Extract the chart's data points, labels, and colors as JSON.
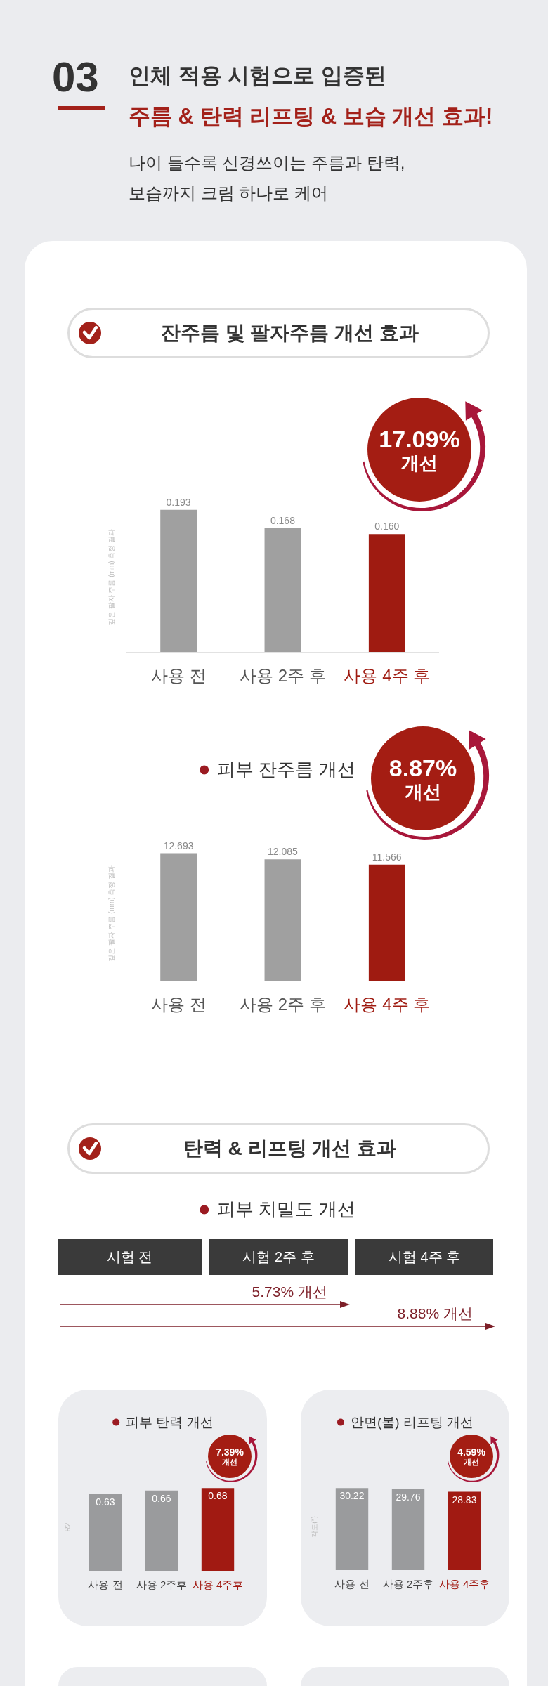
{
  "chart_data": [
    {
      "type": "other",
      "title": "인체 적용 시험으로 입증된",
      "subtitle": "주름 & 탄력 리프팅 & 보습 개선 효과!",
      "annotations": [
        "03",
        "나이 들수록 신경쓰이는 주름과 탄력,\n보습까지 크림 하나로 케어"
      ]
    },
    {
      "type": "bar",
      "title": "잔주름 및 팔자주름 개선 효과",
      "ylabel": "깊은 팔자 주름 (mm) 측정 결과",
      "categories": [
        "사용 전",
        "사용 2주 후",
        "사용 4주 후"
      ],
      "values": [
        0.193,
        0.168,
        0.16
      ],
      "value_labels": [
        "0.193",
        "0.168",
        "0.160"
      ],
      "colors": [
        "#a0a0a0",
        "#a0a0a0",
        "#9f1b11"
      ],
      "annotations": [
        "17.09%\n개선"
      ],
      "tick_labels": "x"
    },
    {
      "type": "bar",
      "title": "피부 잔주름 개선",
      "ylabel": "깊은 팔자 주름 (mm) 측정 결과",
      "categories": [
        "사용 전",
        "사용 2주 후",
        "사용 4주 후"
      ],
      "values": [
        12.693,
        12.085,
        11.566
      ],
      "data_labels": true,
      "colors": [
        "#a0a0a0",
        "#a0a0a0",
        "#9f1b11"
      ],
      "annotations": [
        "8.87%\n개선"
      ],
      "tick_labels": "x"
    },
    {
      "type": "other",
      "title": "탄력 & 리프팅 개선 효과",
      "subtitle": "피부 치밀도 개선",
      "categories": [
        "시험 전",
        "시험 2주 후",
        "시험 4주 후"
      ],
      "annotations": [
        "5.73% 개선",
        "8.88% 개선"
      ]
    },
    {
      "type": "bar",
      "title": "피부 탄력 개선",
      "ylabel": "R2",
      "categories": [
        "사용 전",
        "사용 2주후",
        "사용 4주후"
      ],
      "values": [
        0.63,
        0.66,
        0.68
      ],
      "data_labels": true,
      "colors": [
        "#9a9b9d",
        "#9a9b9d",
        "#a11a12"
      ],
      "annotations": [
        "7.39%\n개선"
      ],
      "tick_labels": "x"
    },
    {
      "type": "bar",
      "title": "안면(볼) 리프팅 개선",
      "ylabel": "각도(°)",
      "categories": [
        "사용 전",
        "사용 2주후",
        "사용 4주후"
      ],
      "values": [
        30.22,
        29.76,
        28.83
      ],
      "data_labels": true,
      "colors": [
        "#9a9b9d",
        "#9a9b9d",
        "#a11a12"
      ],
      "annotations": [
        "4.59%\n개선"
      ],
      "tick_labels": "x"
    }
  ]
}
